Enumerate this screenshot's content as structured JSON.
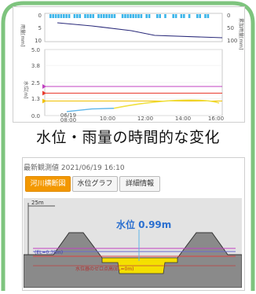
{
  "caption_top": "水位・雨量の時間的な変化",
  "river": {
    "header_label": "最新観測値",
    "header_time": "2021/06/19 16:10",
    "buttons": [
      "河川横断図",
      "水位グラフ",
      "詳細情報"
    ],
    "active_button": 0,
    "scale_label": "25m",
    "water_level_label": "水位 0.99m",
    "el_label": "(EL=0.35m)",
    "zero_label": "水位器のゼロ点高(EL=0m)"
  },
  "chart_data": {
    "type": "line",
    "x_ticks": [
      "06/19\n08:00",
      "10:00",
      "12:00",
      "14:00",
      "16:00"
    ],
    "rain": {
      "ylabel": "雨量[mm]",
      "right_label": "累加雨量[mm]",
      "left_ticks": [
        "0",
        "5",
        "10"
      ],
      "right_ticks": [
        "0",
        "50",
        "100"
      ]
    },
    "level": {
      "ylabel": "水位[m]",
      "yticks": [
        "5.0",
        "3.8",
        "2.5",
        "1.3",
        "0.0"
      ],
      "ylim": [
        0,
        5.0
      ]
    },
    "thresholds": [
      {
        "value": 2.2,
        "color": "#c042c0"
      },
      {
        "value": 1.7,
        "color": "#e83b2e"
      },
      {
        "value": 1.1,
        "color": "#f0c000"
      }
    ],
    "colors": {
      "rain_bars": "#3db6ea",
      "cumulative": "#2a2a7a",
      "water_level": "#f0e040",
      "water_level_early": "#5fb6ea"
    }
  },
  "icons": {
    "frame": "rounded-green-border"
  }
}
